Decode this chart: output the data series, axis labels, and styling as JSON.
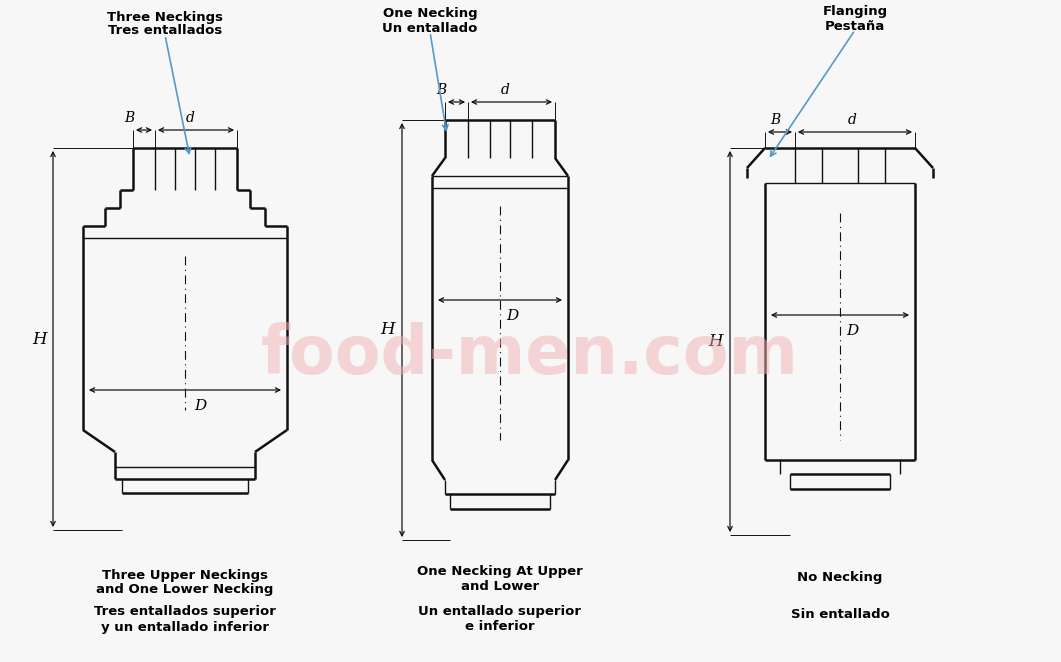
{
  "bg_color": "#f7f7f7",
  "line_color": "#111111",
  "watermark_color": "#f0b0b0",
  "watermark_text": "food-men.com",
  "annotation_color": "#5599cc",
  "labels": {
    "can1_label1": "Three Neckings",
    "can1_label2": "Tres entallados",
    "can1_caption1": "Three Upper Neckings",
    "can1_caption2": "and One Lower Necking",
    "can1_caption3": "Tres entallados superior",
    "can1_caption4": "y un entallado inferior",
    "can2_label1": "One Necking",
    "can2_label2": "Un entallado",
    "can2_caption1": "One Necking At Upper",
    "can2_caption2": "and Lower",
    "can2_caption3": "Un entallado superior",
    "can2_caption4": "e inferior",
    "can3_label1": "Flanging",
    "can3_label2": "Pestaña",
    "can3_caption1": "No Necking",
    "can3_caption2": "Sin entallado"
  }
}
